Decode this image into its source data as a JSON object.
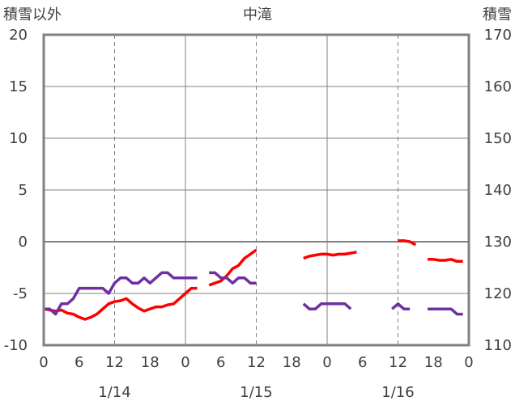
{
  "chart_data": {
    "type": "line",
    "title": "中滝",
    "left_axis_label": "積雪以外",
    "right_axis_label": "積雪",
    "left_ylim": [
      -10,
      20
    ],
    "right_ylim": [
      110,
      170
    ],
    "left_yticks": [
      "20",
      "15",
      "10",
      "5",
      "0",
      "-5",
      "-10"
    ],
    "right_yticks": [
      "170",
      "160",
      "150",
      "140",
      "130",
      "120",
      "110"
    ],
    "x_range_hours": [
      0,
      72
    ],
    "x_tick_labels": [
      "0",
      "6",
      "12",
      "18",
      "0",
      "6",
      "12",
      "18",
      "0",
      "6",
      "12",
      "18",
      "0"
    ],
    "date_labels": [
      "1/14",
      "1/15",
      "1/16"
    ],
    "grid": true,
    "colors": {
      "temperature": "#ff0000",
      "snow_depth": "#7030a0",
      "frame": "#808080",
      "grid": "#808080",
      "zero_line": "#808080",
      "text": "#404040"
    },
    "series": [
      {
        "axis": "left",
        "color": "#ff0000",
        "segments": [
          [
            [
              0,
              -6.5
            ],
            [
              1,
              -6.6
            ],
            [
              2,
              -6.7
            ],
            [
              3,
              -6.6
            ],
            [
              4,
              -6.9
            ],
            [
              5,
              -7.0
            ],
            [
              6,
              -7.3
            ],
            [
              7,
              -7.5
            ],
            [
              8,
              -7.3
            ],
            [
              9,
              -7.0
            ],
            [
              10,
              -6.5
            ],
            [
              11,
              -6.0
            ],
            [
              12,
              -5.8
            ],
            [
              13,
              -5.7
            ],
            [
              14,
              -5.5
            ],
            [
              15,
              -6.0
            ],
            [
              16,
              -6.4
            ],
            [
              17,
              -6.7
            ],
            [
              18,
              -6.5
            ],
            [
              19,
              -6.3
            ],
            [
              20,
              -6.3
            ],
            [
              21,
              -6.1
            ],
            [
              22,
              -6.0
            ],
            [
              23,
              -5.5
            ],
            [
              24,
              -5.0
            ],
            [
              25,
              -4.5
            ],
            [
              26,
              -4.5
            ]
          ],
          [
            [
              28,
              -4.2
            ],
            [
              29,
              -4.0
            ],
            [
              30,
              -3.8
            ],
            [
              31,
              -3.3
            ],
            [
              32,
              -2.6
            ],
            [
              33,
              -2.3
            ],
            [
              34,
              -1.6
            ],
            [
              35,
              -1.2
            ],
            [
              36,
              -0.8
            ]
          ],
          [
            [
              44,
              -1.6
            ],
            [
              45,
              -1.4
            ],
            [
              46,
              -1.3
            ],
            [
              47,
              -1.2
            ],
            [
              48,
              -1.2
            ],
            [
              49,
              -1.3
            ],
            [
              50,
              -1.2
            ],
            [
              51,
              -1.2
            ],
            [
              52,
              -1.1
            ],
            [
              53,
              -1.0
            ]
          ],
          [
            [
              60,
              0.1
            ],
            [
              61,
              0.1
            ],
            [
              62,
              0.0
            ],
            [
              63,
              -0.3
            ]
          ],
          [
            [
              65,
              -1.7
            ],
            [
              66,
              -1.7
            ],
            [
              67,
              -1.8
            ],
            [
              68,
              -1.8
            ],
            [
              69,
              -1.7
            ],
            [
              70,
              -1.9
            ],
            [
              71,
              -1.9
            ]
          ]
        ]
      },
      {
        "axis": "right",
        "color": "#7030a0",
        "segments": [
          [
            [
              0,
              117
            ],
            [
              1,
              117
            ],
            [
              2,
              116
            ],
            [
              3,
              118
            ],
            [
              4,
              118
            ],
            [
              5,
              119
            ],
            [
              6,
              121
            ],
            [
              7,
              121
            ],
            [
              8,
              121
            ],
            [
              9,
              121
            ],
            [
              10,
              121
            ],
            [
              11,
              120
            ],
            [
              12,
              122
            ],
            [
              13,
              123
            ],
            [
              14,
              123
            ],
            [
              15,
              122
            ],
            [
              16,
              122
            ],
            [
              17,
              123
            ],
            [
              18,
              122
            ],
            [
              19,
              123
            ],
            [
              20,
              124
            ],
            [
              21,
              124
            ],
            [
              22,
              123
            ],
            [
              23,
              123
            ],
            [
              24,
              123
            ],
            [
              25,
              123
            ],
            [
              26,
              123
            ]
          ],
          [
            [
              28,
              124
            ],
            [
              29,
              124
            ],
            [
              30,
              123
            ],
            [
              31,
              123
            ],
            [
              32,
              122
            ],
            [
              33,
              123
            ],
            [
              34,
              123
            ],
            [
              35,
              122
            ],
            [
              36,
              122
            ]
          ],
          [
            [
              44,
              118
            ],
            [
              45,
              117
            ],
            [
              46,
              117
            ],
            [
              47,
              118
            ],
            [
              48,
              118
            ],
            [
              49,
              118
            ],
            [
              50,
              118
            ],
            [
              51,
              118
            ],
            [
              52,
              117
            ]
          ],
          [
            [
              59,
              117
            ],
            [
              60,
              118
            ],
            [
              61,
              117
            ],
            [
              62,
              117
            ]
          ],
          [
            [
              65,
              117
            ],
            [
              66,
              117
            ],
            [
              67,
              117
            ],
            [
              68,
              117
            ],
            [
              69,
              117
            ],
            [
              70,
              116
            ],
            [
              71,
              116
            ]
          ]
        ]
      }
    ]
  }
}
